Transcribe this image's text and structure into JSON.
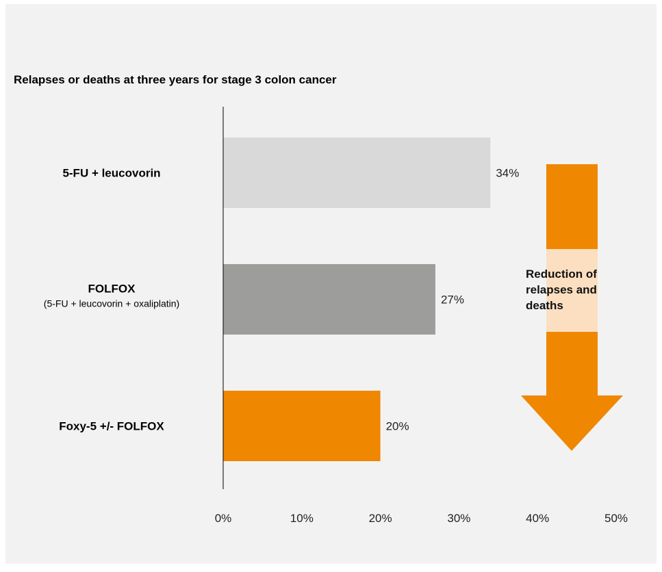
{
  "chart_data": {
    "type": "bar",
    "orientation": "horizontal",
    "title": "Relapses or deaths at three years for stage 3 colon cancer",
    "xlabel": "",
    "ylabel": "",
    "xlim": [
      0,
      50
    ],
    "x_ticks": [
      0,
      10,
      20,
      30,
      40,
      50
    ],
    "x_tick_labels": [
      "0%",
      "10%",
      "20%",
      "30%",
      "40%",
      "50%"
    ],
    "grid": false,
    "legend": "none",
    "categories": [
      {
        "label": "5-FU + leucovorin",
        "sublabel": ""
      },
      {
        "label": "FOLFOX",
        "sublabel": "(5-FU + leucovorin + oxaliplatin)"
      },
      {
        "label": "Foxy-5 +/- FOLFOX",
        "sublabel": ""
      }
    ],
    "values": [
      34,
      27,
      20
    ],
    "value_labels": [
      "34%",
      "27%",
      "20%"
    ],
    "bar_colors": [
      "#d9d9d9",
      "#9d9d9b",
      "#ef8700"
    ],
    "annotation": {
      "text_lines": [
        "Reduction of",
        "relapses and",
        "deaths"
      ],
      "arrow_color": "#ef8700",
      "band_color": "#fbdfc0",
      "direction": "down"
    }
  },
  "colors": {
    "background": "#f2f2f2",
    "axis": "#000000"
  }
}
